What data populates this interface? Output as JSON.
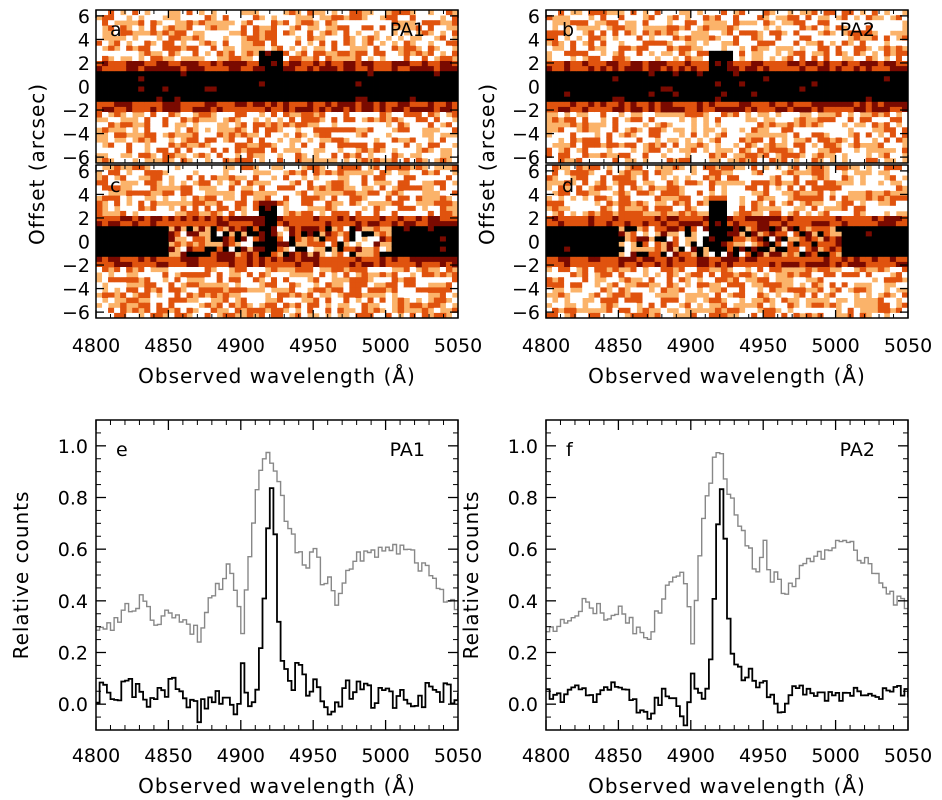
{
  "chart_data": [
    {
      "type": "heatmap",
      "panels": [
        {
          "letter": "a",
          "label": "PA1",
          "row": "top",
          "mode": "raw"
        },
        {
          "letter": "b",
          "label": "PA2",
          "row": "top",
          "mode": "raw"
        },
        {
          "letter": "c",
          "label": "",
          "row": "bottom",
          "mode": "subtracted"
        },
        {
          "letter": "d",
          "label": "",
          "row": "bottom",
          "mode": "subtracted"
        }
      ],
      "xlabel": "Observed wavelength (Å)",
      "ylabel": "Offset (arcsec)",
      "xlim": [
        4800,
        5050
      ],
      "ylim": [
        -6.5,
        6.5
      ],
      "x_ticks": [
        "4800",
        "4850",
        "4900",
        "4950",
        "5000",
        "5050"
      ],
      "y_ticks": [
        "6",
        "4",
        "2",
        "0",
        "−2",
        "−4",
        "−6"
      ],
      "colormap": [
        "#000000",
        "#7a0a00",
        "#e0530e",
        "#fbb36a",
        "#ffffff"
      ],
      "continuum_halfwidth_arcsec": 1.5,
      "subtracted_window": [
        4848,
        5005
      ],
      "emission_line_wavelength": 4920
    },
    {
      "type": "line",
      "panels": [
        {
          "letter": "e",
          "label": "PA1"
        },
        {
          "letter": "f",
          "label": "PA2"
        }
      ],
      "xlabel": "Observed wavelength (Å)",
      "ylabel": "Relative counts",
      "xlim": [
        4800,
        5050
      ],
      "ylim": [
        -0.1,
        1.1
      ],
      "x_ticks": [
        "4800",
        "4850",
        "4900",
        "4950",
        "5000",
        "5050"
      ],
      "y_ticks": [
        "0.0",
        "0.2",
        "0.4",
        "0.6",
        "0.8",
        "1.0"
      ],
      "series": [
        {
          "color": "#888888",
          "x": [
            4800,
            4810,
            4820,
            4830,
            4840,
            4850,
            4860,
            4870,
            4880,
            4890,
            4895,
            4900,
            4905,
            4910,
            4915,
            4918,
            4922,
            4926,
            4930,
            4935,
            4940,
            4945,
            4950,
            4955,
            4960,
            4965,
            4970,
            4980,
            4990,
            5000,
            5010,
            5020,
            5030,
            5040,
            5050
          ],
          "y": [
            0.3,
            0.3,
            0.36,
            0.4,
            0.32,
            0.38,
            0.3,
            0.27,
            0.42,
            0.52,
            0.45,
            0.25,
            0.58,
            0.82,
            0.95,
            1.0,
            0.9,
            0.82,
            0.72,
            0.65,
            0.58,
            0.52,
            0.62,
            0.48,
            0.5,
            0.4,
            0.48,
            0.56,
            0.59,
            0.61,
            0.6,
            0.56,
            0.49,
            0.41,
            0.35
          ]
        },
        {
          "color": "#000000",
          "x": [
            4800,
            4810,
            4820,
            4830,
            4840,
            4850,
            4860,
            4870,
            4880,
            4890,
            4895,
            4900,
            4905,
            4910,
            4913,
            4916,
            4919,
            4922,
            4925,
            4928,
            4931,
            4935,
            4940,
            4945,
            4950,
            4955,
            4960,
            4965,
            4970,
            4980,
            4990,
            5000,
            5010,
            5020,
            5030,
            5040,
            5050
          ],
          "y": [
            0.05,
            0.03,
            0.06,
            0.02,
            0.05,
            0.08,
            0.0,
            -0.04,
            0.04,
            0.0,
            -0.06,
            0.12,
            0.02,
            0.05,
            0.2,
            0.5,
            0.9,
            0.72,
            0.35,
            0.18,
            0.15,
            0.1,
            0.12,
            0.05,
            0.08,
            0.02,
            -0.03,
            0.01,
            0.06,
            0.04,
            0.03,
            0.02,
            0.05,
            0.03,
            0.04,
            0.06,
            0.03
          ]
        }
      ]
    }
  ]
}
